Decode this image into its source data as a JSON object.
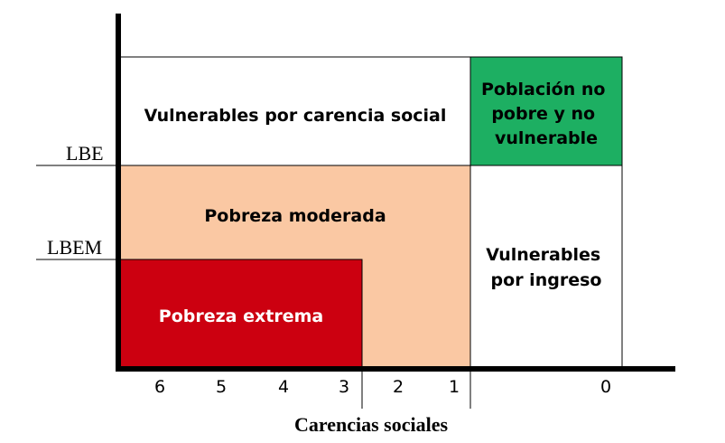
{
  "regions": {
    "vulnerable_social": {
      "lines": [
        "Vulnerables por carencia social"
      ],
      "fill": "#ffffff"
    },
    "non_poor": {
      "lines": [
        "Población no",
        "pobre y no",
        "vulnerable"
      ],
      "fill": "#1daf62"
    },
    "moderate_poverty": {
      "lines": [
        "Pobreza moderada"
      ],
      "fill": "#fac8a3"
    },
    "extreme_poverty": {
      "lines": [
        "Pobreza extrema"
      ],
      "fill": "#cc0010"
    },
    "vulnerable_income": {
      "lines": [
        "Vulnerables",
        "por ingreso"
      ],
      "fill": "#ffffff"
    }
  },
  "y_axis": {
    "lines": [
      "LBE",
      "LBEM"
    ]
  },
  "x_axis": {
    "ticks": [
      "6",
      "5",
      "4",
      "3",
      "2",
      "1",
      "0"
    ],
    "label": "Carencias sociales"
  }
}
